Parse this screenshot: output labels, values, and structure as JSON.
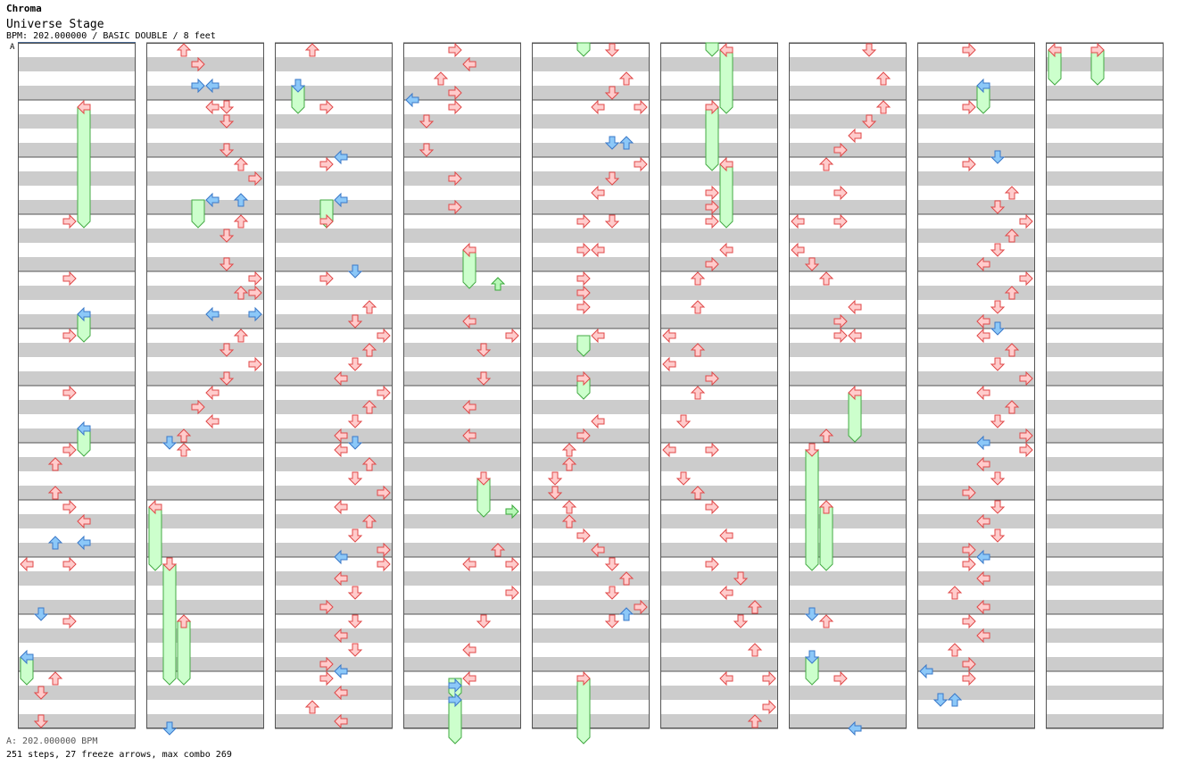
{
  "header": {
    "song_title": "Chroma",
    "stage_title": "Universe Stage",
    "chart_info": "BPM: 202.000000 / BASIC DOUBLE / 8 feet",
    "bpm_marker": "A"
  },
  "footer": {
    "bpm_legend": "A: 202.000000 BPM",
    "stats": "251 steps, 27 freeze arrows, max combo 269"
  },
  "colors": {
    "red_fill": "#ffcccc",
    "red_stroke": "#e04848",
    "blue_fill": "#8cc8f8",
    "blue_stroke": "#3a78c8",
    "green_fill": "#b8f8b8",
    "green_stroke": "#38a838",
    "hold_fill": "#ccffcc",
    "hold_stroke": "#44aa44",
    "band_gray": "#cccccc",
    "grid_line": "#555555"
  },
  "arrow_colors": {
    "lane_directions": [
      "left",
      "down",
      "up",
      "right",
      "left",
      "down",
      "up",
      "right"
    ]
  }
}
